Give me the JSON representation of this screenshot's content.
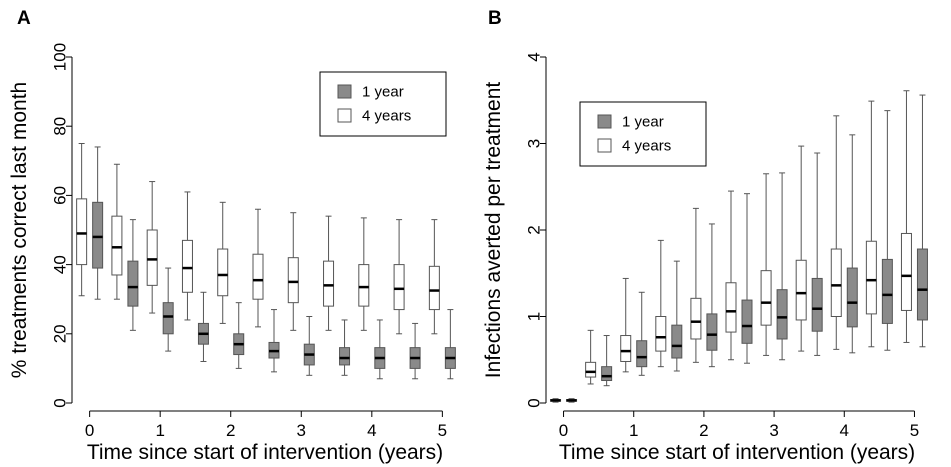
{
  "chart_data": [
    {
      "panel": "A",
      "type": "boxplot",
      "xlabel": "Time since start of intervention (years)",
      "ylabel": "% treatments correct last month",
      "ylim": [
        0,
        100
      ],
      "yticks": [
        0,
        20,
        40,
        60,
        80,
        100
      ],
      "xticks": [
        0,
        1,
        2,
        3,
        4,
        5
      ],
      "xlim": [
        -0.25,
        5.25
      ],
      "legend": {
        "placement": "top-right",
        "entries": [
          "1 year",
          "4 years"
        ]
      },
      "colors": {
        "1 year": "#8a8a8a",
        "4 years": "#ffffff"
      },
      "series": [
        {
          "name": "4 years",
          "x": [
            0,
            0.5,
            1,
            1.5,
            2,
            2.5,
            3,
            3.5,
            4,
            4.5,
            5
          ],
          "whisker_low": [
            31,
            30,
            26,
            24,
            23,
            22,
            21,
            21,
            21,
            20,
            20
          ],
          "q1": [
            40,
            37,
            34,
            32,
            31,
            30,
            29,
            28,
            28,
            27,
            27
          ],
          "median": [
            49,
            45,
            41.5,
            39,
            37,
            35.5,
            35,
            34,
            33.5,
            33,
            32.5
          ],
          "q3": [
            59,
            54,
            50,
            47,
            44.5,
            43,
            42,
            41,
            40,
            40,
            39.5
          ],
          "whisker_high": [
            75,
            69,
            64,
            61,
            58,
            56,
            55,
            54,
            53.5,
            53,
            53
          ]
        },
        {
          "name": "1 year",
          "x": [
            0,
            0.5,
            1,
            1.5,
            2,
            2.5,
            3,
            3.5,
            4,
            4.5,
            5
          ],
          "whisker_low": [
            30,
            21,
            15,
            12,
            10,
            9,
            8,
            8,
            7,
            7,
            7
          ],
          "q1": [
            39,
            28,
            20,
            17,
            14,
            13,
            11,
            11,
            10,
            10,
            10
          ],
          "median": [
            48,
            33.5,
            25,
            20,
            17,
            15,
            14,
            13,
            13,
            13,
            13
          ],
          "q3": [
            58,
            41,
            29,
            23,
            20,
            17.5,
            17,
            16,
            16,
            16,
            16
          ],
          "whisker_high": [
            74,
            53,
            39,
            32,
            29,
            27,
            25,
            24,
            24,
            23,
            27
          ]
        }
      ]
    },
    {
      "panel": "B",
      "type": "boxplot",
      "xlabel": "Time since start of intervention (years)",
      "ylabel": "Infections averted per treatment",
      "ylim": [
        0,
        4
      ],
      "yticks": [
        0,
        1,
        2,
        3,
        4
      ],
      "xticks": [
        0,
        1,
        2,
        3,
        4,
        5
      ],
      "xlim": [
        -0.25,
        5.25
      ],
      "legend": {
        "placement": "top-left",
        "entries": [
          "1 year",
          "4 years"
        ]
      },
      "colors": {
        "1 year": "#8a8a8a",
        "4 years": "#ffffff"
      },
      "series": [
        {
          "name": "4 years",
          "x": [
            0,
            0.5,
            1,
            1.5,
            2,
            2.5,
            3,
            3.5,
            4,
            4.5,
            5
          ],
          "whisker_low": [
            0.01,
            0.22,
            0.36,
            0.42,
            0.47,
            0.5,
            0.55,
            0.6,
            0.62,
            0.65,
            0.7
          ],
          "q1": [
            0.02,
            0.3,
            0.48,
            0.6,
            0.74,
            0.82,
            0.9,
            0.96,
            1.0,
            1.03,
            1.07
          ],
          "median": [
            0.03,
            0.36,
            0.6,
            0.76,
            0.94,
            1.06,
            1.16,
            1.27,
            1.36,
            1.42,
            1.47
          ],
          "q3": [
            0.04,
            0.47,
            0.78,
            1.0,
            1.21,
            1.39,
            1.53,
            1.65,
            1.78,
            1.87,
            1.96
          ],
          "whisker_high": [
            0.05,
            0.84,
            1.44,
            1.88,
            2.25,
            2.45,
            2.65,
            2.97,
            3.32,
            3.49,
            3.61
          ]
        },
        {
          "name": "1 year",
          "x": [
            0,
            0.5,
            1,
            1.5,
            2,
            2.5,
            3,
            3.5,
            4,
            4.5,
            5
          ],
          "whisker_low": [
            0.01,
            0.2,
            0.32,
            0.37,
            0.42,
            0.46,
            0.5,
            0.55,
            0.58,
            0.61,
            0.65
          ],
          "q1": [
            0.02,
            0.26,
            0.42,
            0.52,
            0.61,
            0.69,
            0.74,
            0.83,
            0.88,
            0.92,
            0.96
          ],
          "median": [
            0.03,
            0.31,
            0.53,
            0.66,
            0.79,
            0.89,
            0.99,
            1.09,
            1.16,
            1.25,
            1.31
          ],
          "q3": [
            0.04,
            0.42,
            0.72,
            0.9,
            1.03,
            1.19,
            1.31,
            1.44,
            1.56,
            1.66,
            1.78
          ],
          "whisker_high": [
            0.05,
            0.78,
            1.28,
            1.64,
            2.07,
            2.42,
            2.66,
            2.89,
            3.1,
            3.38,
            3.56
          ]
        }
      ]
    }
  ]
}
